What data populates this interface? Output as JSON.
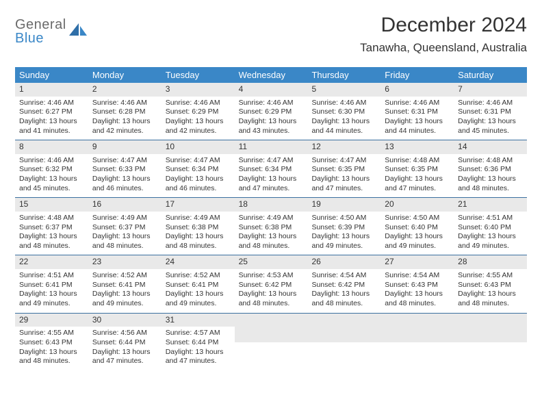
{
  "logo": {
    "top": "General",
    "bottom": "Blue"
  },
  "title": "December 2024",
  "location": "Tanawha, Queensland, Australia",
  "colors": {
    "header_bg": "#3a87c7",
    "header_text": "#ffffff",
    "daynum_bg": "#e9e9e9",
    "week_border": "#3a6fa0",
    "text": "#333333",
    "logo_gray": "#6a6a6a",
    "logo_blue": "#3a87c7"
  },
  "days_of_week": [
    "Sunday",
    "Monday",
    "Tuesday",
    "Wednesday",
    "Thursday",
    "Friday",
    "Saturday"
  ],
  "weeks": [
    [
      {
        "n": "1",
        "sr": "4:46 AM",
        "ss": "6:27 PM",
        "dl": "13 hours and 41 minutes."
      },
      {
        "n": "2",
        "sr": "4:46 AM",
        "ss": "6:28 PM",
        "dl": "13 hours and 42 minutes."
      },
      {
        "n": "3",
        "sr": "4:46 AM",
        "ss": "6:29 PM",
        "dl": "13 hours and 42 minutes."
      },
      {
        "n": "4",
        "sr": "4:46 AM",
        "ss": "6:29 PM",
        "dl": "13 hours and 43 minutes."
      },
      {
        "n": "5",
        "sr": "4:46 AM",
        "ss": "6:30 PM",
        "dl": "13 hours and 44 minutes."
      },
      {
        "n": "6",
        "sr": "4:46 AM",
        "ss": "6:31 PM",
        "dl": "13 hours and 44 minutes."
      },
      {
        "n": "7",
        "sr": "4:46 AM",
        "ss": "6:31 PM",
        "dl": "13 hours and 45 minutes."
      }
    ],
    [
      {
        "n": "8",
        "sr": "4:46 AM",
        "ss": "6:32 PM",
        "dl": "13 hours and 45 minutes."
      },
      {
        "n": "9",
        "sr": "4:47 AM",
        "ss": "6:33 PM",
        "dl": "13 hours and 46 minutes."
      },
      {
        "n": "10",
        "sr": "4:47 AM",
        "ss": "6:34 PM",
        "dl": "13 hours and 46 minutes."
      },
      {
        "n": "11",
        "sr": "4:47 AM",
        "ss": "6:34 PM",
        "dl": "13 hours and 47 minutes."
      },
      {
        "n": "12",
        "sr": "4:47 AM",
        "ss": "6:35 PM",
        "dl": "13 hours and 47 minutes."
      },
      {
        "n": "13",
        "sr": "4:48 AM",
        "ss": "6:35 PM",
        "dl": "13 hours and 47 minutes."
      },
      {
        "n": "14",
        "sr": "4:48 AM",
        "ss": "6:36 PM",
        "dl": "13 hours and 48 minutes."
      }
    ],
    [
      {
        "n": "15",
        "sr": "4:48 AM",
        "ss": "6:37 PM",
        "dl": "13 hours and 48 minutes."
      },
      {
        "n": "16",
        "sr": "4:49 AM",
        "ss": "6:37 PM",
        "dl": "13 hours and 48 minutes."
      },
      {
        "n": "17",
        "sr": "4:49 AM",
        "ss": "6:38 PM",
        "dl": "13 hours and 48 minutes."
      },
      {
        "n": "18",
        "sr": "4:49 AM",
        "ss": "6:38 PM",
        "dl": "13 hours and 48 minutes."
      },
      {
        "n": "19",
        "sr": "4:50 AM",
        "ss": "6:39 PM",
        "dl": "13 hours and 49 minutes."
      },
      {
        "n": "20",
        "sr": "4:50 AM",
        "ss": "6:40 PM",
        "dl": "13 hours and 49 minutes."
      },
      {
        "n": "21",
        "sr": "4:51 AM",
        "ss": "6:40 PM",
        "dl": "13 hours and 49 minutes."
      }
    ],
    [
      {
        "n": "22",
        "sr": "4:51 AM",
        "ss": "6:41 PM",
        "dl": "13 hours and 49 minutes."
      },
      {
        "n": "23",
        "sr": "4:52 AM",
        "ss": "6:41 PM",
        "dl": "13 hours and 49 minutes."
      },
      {
        "n": "24",
        "sr": "4:52 AM",
        "ss": "6:41 PM",
        "dl": "13 hours and 49 minutes."
      },
      {
        "n": "25",
        "sr": "4:53 AM",
        "ss": "6:42 PM",
        "dl": "13 hours and 48 minutes."
      },
      {
        "n": "26",
        "sr": "4:54 AM",
        "ss": "6:42 PM",
        "dl": "13 hours and 48 minutes."
      },
      {
        "n": "27",
        "sr": "4:54 AM",
        "ss": "6:43 PM",
        "dl": "13 hours and 48 minutes."
      },
      {
        "n": "28",
        "sr": "4:55 AM",
        "ss": "6:43 PM",
        "dl": "13 hours and 48 minutes."
      }
    ],
    [
      {
        "n": "29",
        "sr": "4:55 AM",
        "ss": "6:43 PM",
        "dl": "13 hours and 48 minutes."
      },
      {
        "n": "30",
        "sr": "4:56 AM",
        "ss": "6:44 PM",
        "dl": "13 hours and 47 minutes."
      },
      {
        "n": "31",
        "sr": "4:57 AM",
        "ss": "6:44 PM",
        "dl": "13 hours and 47 minutes."
      },
      {
        "empty": true
      },
      {
        "empty": true
      },
      {
        "empty": true
      },
      {
        "empty": true
      }
    ]
  ],
  "labels": {
    "sunrise": "Sunrise:",
    "sunset": "Sunset:",
    "daylight": "Daylight:"
  }
}
